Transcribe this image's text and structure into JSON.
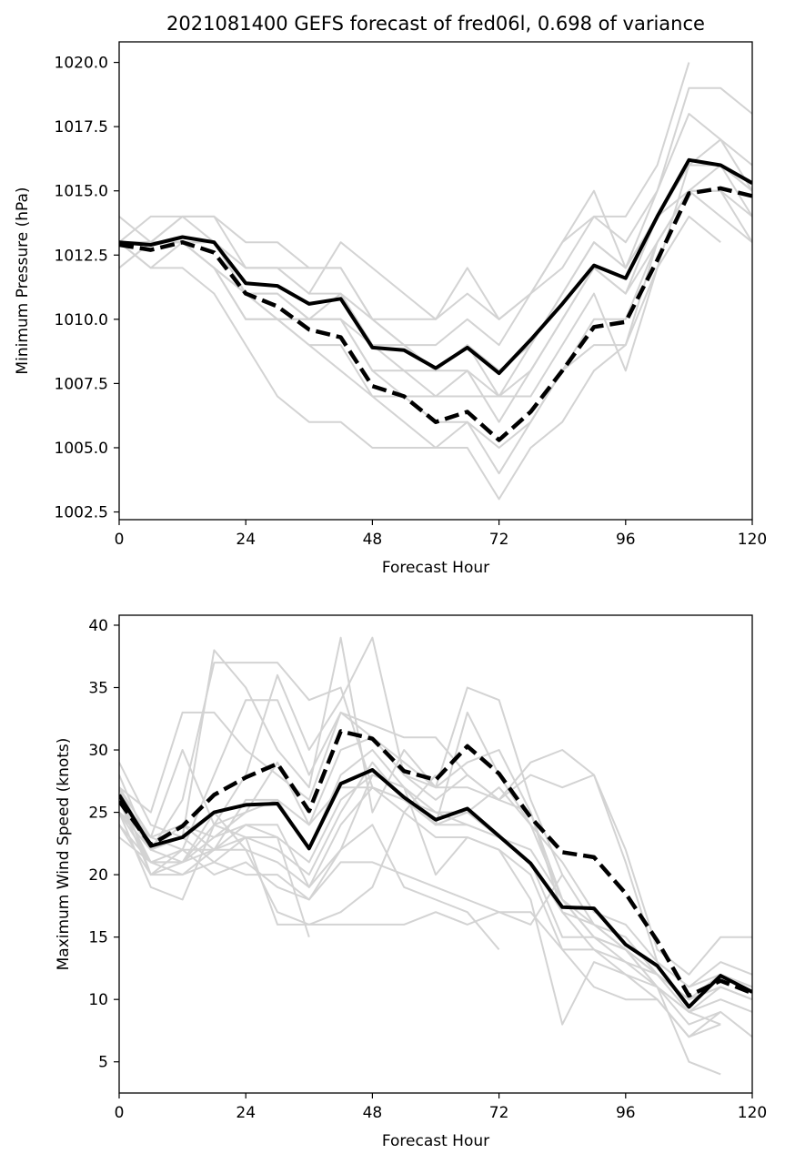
{
  "title": "2021081400 GEFS forecast of fred06l, 0.698 of variance",
  "colors": {
    "member": "#d3d3d3",
    "mean": "#000000",
    "axis": "#000000",
    "background": "#ffffff"
  },
  "chart_data": [
    {
      "type": "line",
      "xlabel": "Forecast Hour",
      "ylabel": "Minimum Pressure (hPa)",
      "xlim": [
        0,
        120
      ],
      "ylim": [
        1002.2,
        1020.8
      ],
      "xticks": [
        0,
        24,
        48,
        72,
        96,
        120
      ],
      "yticks": [
        1002.5,
        1005.0,
        1007.5,
        1010.0,
        1012.5,
        1015.0,
        1017.5,
        1020.0
      ],
      "ytick_decimals": 1,
      "x": [
        0,
        6,
        12,
        18,
        24,
        30,
        36,
        42,
        48,
        54,
        60,
        66,
        72,
        78,
        84,
        90,
        96,
        102,
        108,
        114,
        120
      ],
      "members": [
        [
          1013,
          1013,
          1014,
          1014,
          1012,
          1012,
          1012,
          1012,
          1010,
          1010,
          1010,
          1011,
          1010,
          1011,
          1012,
          1014,
          1014,
          1016,
          1020
        ],
        [
          1014,
          1013,
          1014,
          1014,
          1013,
          1013,
          1012,
          1012,
          1010,
          1009,
          1009,
          1010,
          1009,
          1011,
          1013,
          1015,
          1012,
          1015,
          1019,
          1019,
          1018
        ],
        [
          1013,
          1013,
          1013,
          1013,
          1012,
          1012,
          1011,
          1013,
          1012,
          1011,
          1010,
          1012,
          1010,
          1011,
          1013,
          1014,
          1013,
          1015,
          1018,
          1017,
          1016
        ],
        [
          1013,
          1014,
          1014,
          1013,
          1012,
          1012,
          1011,
          1011,
          1010,
          1009,
          1008,
          1008,
          1007,
          1008,
          1010,
          1012,
          1011,
          1014,
          1016,
          1017,
          1015
        ],
        [
          1012,
          1013,
          1013,
          1013,
          1011,
          1011,
          1010,
          1010,
          1009,
          1008,
          1008,
          1009,
          1008,
          1009,
          1011,
          1013,
          1012,
          1014,
          1015,
          1016,
          1015
        ],
        [
          1013,
          1013,
          1013,
          1013,
          1011,
          1010,
          1010,
          1010,
          1008,
          1008,
          1007,
          1008,
          1006,
          1008,
          1010,
          1012,
          1011,
          1013,
          1015,
          1015,
          1014
        ],
        [
          1013,
          1013,
          1013,
          1012,
          1011,
          1010,
          1009,
          1009,
          1007,
          1006,
          1005,
          1006,
          1004,
          1006,
          1008,
          1010,
          1010,
          1013,
          1015,
          1015,
          1013
        ],
        [
          1013,
          1012,
          1013,
          1012,
          1010,
          1010,
          1009,
          1008,
          1007,
          1007,
          1006,
          1006,
          1005,
          1006,
          1008,
          1009,
          1009,
          1013,
          1015,
          1014,
          1013
        ],
        [
          1013,
          1012,
          1012,
          1011,
          1009,
          1007,
          1006,
          1006,
          1005,
          1005,
          1005,
          1005,
          1003,
          1005,
          1006,
          1008,
          1009,
          1012,
          1014,
          1013
        ],
        [
          1013,
          1013,
          1013,
          1012,
          1011,
          1011,
          1010,
          1011,
          1009,
          1009,
          1008,
          1009,
          1007,
          1009,
          1011,
          1013,
          1012,
          1014,
          1016,
          1016,
          1015
        ],
        [
          1012,
          1013,
          1013,
          1012,
          1010,
          1010,
          1010,
          1010,
          1008,
          1007,
          1007,
          1007,
          1007,
          1007,
          1009,
          1011,
          1008,
          1012,
          1016,
          1016,
          1014
        ]
      ],
      "mean": [
        1013.0,
        1012.9,
        1013.2,
        1013.0,
        1011.4,
        1011.3,
        1010.6,
        1010.8,
        1008.9,
        1008.8,
        1008.1,
        1008.9,
        1007.9,
        1009.2,
        1010.6,
        1012.1,
        1011.6,
        1014.0,
        1016.2,
        1016.0,
        1015.3
      ],
      "dashed": [
        1012.9,
        1012.7,
        1013.0,
        1012.6,
        1011.0,
        1010.5,
        1009.6,
        1009.3,
        1007.4,
        1007.0,
        1006.0,
        1006.4,
        1005.3,
        1006.4,
        1008.0,
        1009.7,
        1009.9,
        1012.3,
        1014.9,
        1015.1,
        1014.8
      ]
    },
    {
      "type": "line",
      "xlabel": "Forecast Hour",
      "ylabel": "Maximum Wind Speed (knots)",
      "xlim": [
        0,
        120
      ],
      "ylim": [
        2.5,
        40.8
      ],
      "xticks": [
        0,
        24,
        48,
        72,
        96,
        120
      ],
      "yticks": [
        5,
        10,
        15,
        20,
        25,
        30,
        35,
        40
      ],
      "ytick_decimals": 0,
      "x": [
        0,
        6,
        12,
        18,
        24,
        30,
        36,
        42,
        48,
        54,
        60,
        66,
        72,
        78,
        84,
        90,
        96,
        102,
        108,
        114,
        120
      ],
      "members": [
        [
          29,
          24,
          23,
          38,
          35,
          30,
          27,
          39,
          25,
          30,
          27,
          29,
          30,
          25,
          17,
          14,
          12,
          11,
          8,
          9
        ],
        [
          27,
          25,
          33,
          33,
          30,
          28,
          26,
          33,
          31,
          28,
          27,
          35,
          34,
          26,
          20,
          16,
          14,
          11,
          9,
          8
        ],
        [
          28,
          22,
          26,
          37,
          37,
          37,
          34,
          35,
          27,
          26,
          24,
          33,
          28,
          24,
          18,
          15,
          13,
          12,
          10,
          12,
          11
        ],
        [
          26,
          21,
          22,
          28,
          34,
          34,
          28,
          33,
          32,
          31,
          31,
          28,
          26,
          25,
          18,
          16,
          15,
          12,
          10,
          11,
          10
        ],
        [
          27,
          23,
          30,
          24,
          28,
          36,
          30,
          34,
          39,
          28,
          26,
          28,
          26,
          29,
          30,
          28,
          22,
          14,
          12,
          15,
          15
        ],
        [
          26,
          23,
          24,
          23,
          25,
          29,
          24,
          30,
          31,
          29,
          27,
          27,
          26,
          28,
          27,
          28,
          21,
          13,
          11,
          13,
          12
        ],
        [
          25,
          22,
          21,
          24,
          25,
          26,
          22,
          28,
          30,
          27,
          25,
          25,
          27,
          24,
          21,
          17,
          16,
          13,
          11,
          12,
          11
        ],
        [
          25,
          21,
          21,
          23,
          24,
          23,
          21,
          26,
          28,
          27,
          24,
          25,
          23,
          22,
          18,
          15,
          14,
          12,
          10,
          11,
          10
        ],
        [
          24,
          21,
          21,
          22,
          23,
          22,
          20,
          25,
          29,
          26,
          24,
          24,
          23,
          21,
          15,
          15,
          14,
          12,
          9,
          11,
          10
        ],
        [
          24,
          20,
          20,
          22,
          22,
          21,
          19,
          24,
          27,
          25,
          23,
          23,
          22,
          20,
          14,
          14,
          13,
          11,
          9,
          10,
          9
        ],
        [
          26,
          20,
          22,
          22,
          24,
          24,
          19,
          22,
          28,
          27,
          20,
          23,
          22,
          18,
          8,
          13,
          12,
          10,
          7,
          8
        ],
        [
          27,
          20,
          21,
          25,
          22,
          17,
          16,
          16,
          16,
          16,
          17,
          16,
          17,
          16,
          20
        ],
        [
          25,
          19,
          18,
          24,
          23,
          23,
          15
        ],
        [
          23,
          21,
          20,
          21,
          23,
          16,
          16,
          17,
          19,
          25,
          28
        ],
        [
          25,
          23,
          22,
          20,
          21,
          19,
          18,
          21,
          21,
          20,
          19,
          18,
          17,
          17,
          14,
          11,
          10,
          10,
          7,
          9,
          7
        ],
        [
          26,
          22,
          24,
          22,
          26,
          26,
          24,
          27,
          27,
          26,
          25,
          24,
          23,
          21,
          17,
          16,
          14,
          11,
          5,
          4
        ],
        [
          27,
          22,
          23,
          21,
          20,
          20,
          18,
          22,
          24,
          19,
          18,
          17,
          14
        ]
      ],
      "mean": [
        26.4,
        22.3,
        23.0,
        25.0,
        25.6,
        25.7,
        22.1,
        27.3,
        28.4,
        26.2,
        24.4,
        25.3,
        23.1,
        20.9,
        17.4,
        17.3,
        14.4,
        12.7,
        9.4,
        11.9,
        10.6
      ],
      "dashed": [
        25.9,
        22.4,
        23.9,
        26.4,
        27.8,
        28.9,
        25.1,
        31.5,
        30.9,
        28.3,
        27.6,
        30.3,
        28.1,
        24.6,
        21.8,
        21.4,
        18.5,
        14.7,
        10.3,
        11.5,
        10.5
      ]
    }
  ]
}
